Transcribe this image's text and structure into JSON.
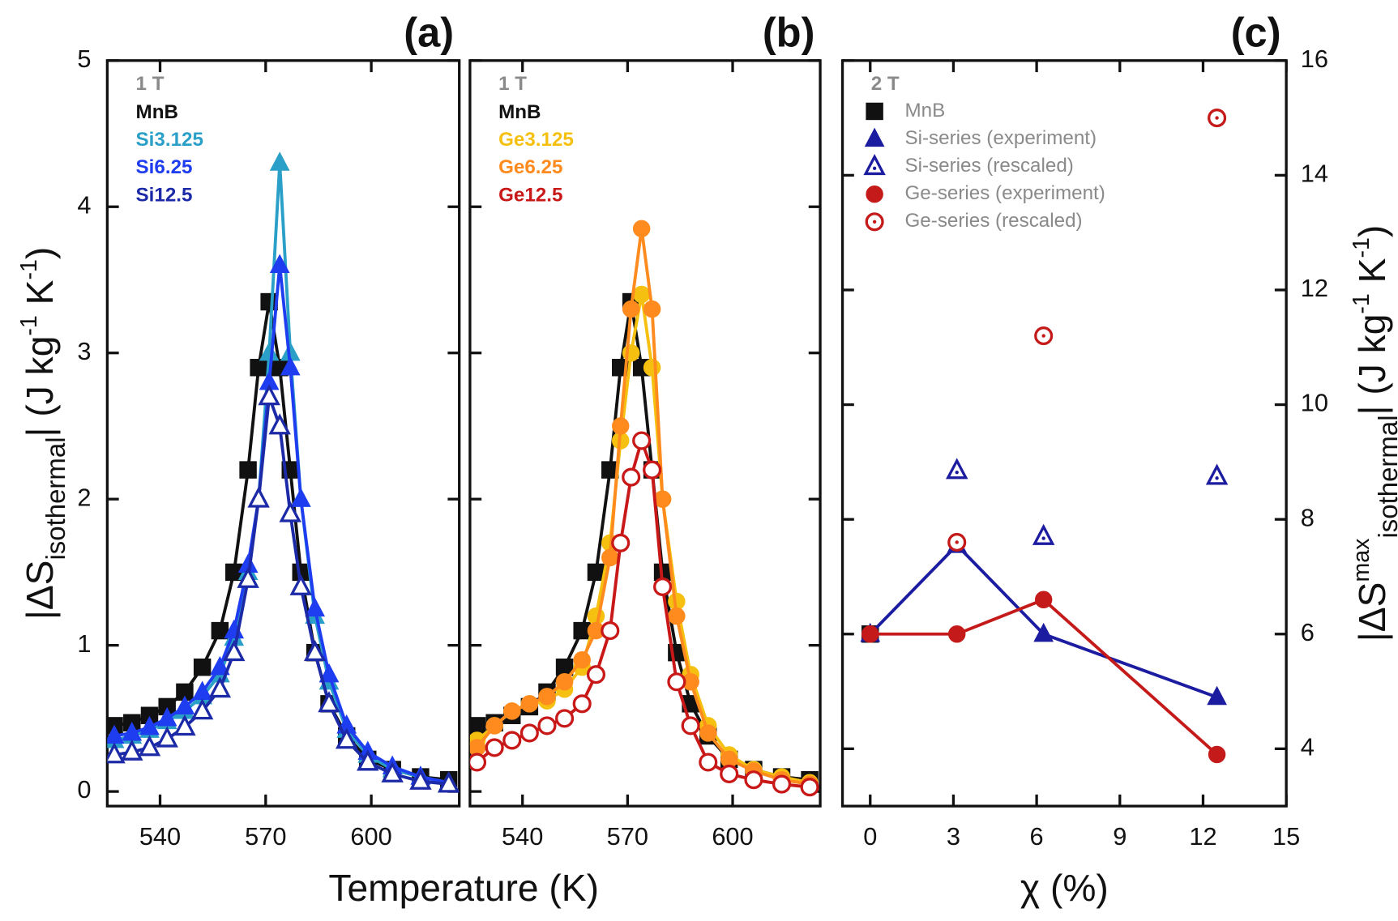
{
  "chart_data": [
    {
      "type": "line",
      "panel_label": "(a)",
      "field": "1 T",
      "xlabel": "Temperature (K)",
      "ylabel": [
        {
          "text": "|ΔS"
        },
        {
          "text": "isothermal",
          "shift": "sub"
        },
        {
          "text": "| (J kg"
        },
        {
          "text": "-1",
          "shift": "super"
        },
        {
          "text": " K"
        },
        {
          "text": "-1",
          "shift": "super"
        },
        {
          "text": ")"
        }
      ],
      "xlim": [
        525,
        625
      ],
      "ylim": [
        -0.1,
        5
      ],
      "xticks": [
        540,
        570,
        600
      ],
      "yticks": [
        0,
        1,
        2,
        3,
        4,
        5
      ],
      "x": [
        527,
        532,
        537,
        542,
        547,
        552,
        557,
        561,
        565,
        568,
        571,
        574,
        577,
        580,
        584,
        588,
        593,
        599,
        606,
        614,
        622
      ],
      "series": [
        {
          "name": "MnB",
          "color": "#111111",
          "marker": "square",
          "values": [
            0.45,
            0.47,
            0.52,
            0.58,
            0.68,
            0.85,
            1.1,
            1.5,
            2.2,
            2.9,
            3.35,
            2.9,
            2.2,
            1.5,
            0.95,
            0.6,
            0.38,
            0.22,
            0.15,
            0.1,
            0.08
          ]
        },
        {
          "name": "Si3.125",
          "color": "#2aa0c8",
          "marker": "triangle",
          "values": [
            0.35,
            0.38,
            0.42,
            0.48,
            0.55,
            0.65,
            0.8,
            1.05,
            1.5,
            2.0,
            3.0,
            4.3,
            3.0,
            2.0,
            1.2,
            0.75,
            0.42,
            0.25,
            0.15,
            0.1,
            0.06
          ]
        },
        {
          "name": "Si6.25",
          "color": "#1f3df0",
          "marker": "triangle",
          "values": [
            0.38,
            0.4,
            0.44,
            0.5,
            0.58,
            0.68,
            0.85,
            1.1,
            1.55,
            2.0,
            2.8,
            3.6,
            2.9,
            2.0,
            1.25,
            0.8,
            0.45,
            0.27,
            0.17,
            0.1,
            0.06
          ]
        },
        {
          "name": "Si12.5",
          "color": "#1c2aa8",
          "marker": "triangle-open",
          "values": [
            0.25,
            0.27,
            0.3,
            0.36,
            0.44,
            0.55,
            0.7,
            0.95,
            1.45,
            2.0,
            2.7,
            2.5,
            1.9,
            1.4,
            0.95,
            0.6,
            0.35,
            0.2,
            0.12,
            0.07,
            0.05
          ]
        }
      ]
    },
    {
      "type": "line",
      "panel_label": "(b)",
      "field": "1 T",
      "xlim": [
        525,
        625
      ],
      "ylim": [
        -0.1,
        5
      ],
      "xticks": [
        540,
        570,
        600
      ],
      "x": [
        527,
        532,
        537,
        542,
        547,
        552,
        557,
        561,
        565,
        568,
        571,
        574,
        577,
        580,
        584,
        588,
        593,
        599,
        606,
        614,
        622
      ],
      "series": [
        {
          "name": "MnB",
          "color": "#111111",
          "marker": "square",
          "values": [
            0.45,
            0.47,
            0.52,
            0.58,
            0.68,
            0.85,
            1.1,
            1.5,
            2.2,
            2.9,
            3.35,
            2.9,
            2.2,
            1.5,
            0.95,
            0.6,
            0.38,
            0.22,
            0.15,
            0.1,
            0.08
          ]
        },
        {
          "name": "Ge3.125",
          "color": "#f5c010",
          "marker": "circle",
          "values": [
            0.35,
            0.45,
            0.55,
            0.6,
            0.62,
            0.7,
            0.85,
            1.2,
            1.7,
            2.4,
            3.0,
            3.4,
            2.9,
            2.0,
            1.3,
            0.8,
            0.45,
            0.25,
            0.15,
            0.1,
            0.06
          ]
        },
        {
          "name": "Ge6.25",
          "color": "#ff8a1e",
          "marker": "circle",
          "values": [
            0.3,
            0.45,
            0.55,
            0.6,
            0.65,
            0.75,
            0.9,
            1.1,
            1.6,
            2.5,
            3.3,
            3.85,
            3.3,
            2.0,
            1.2,
            0.75,
            0.4,
            0.22,
            0.14,
            0.08,
            0.05
          ]
        },
        {
          "name": "Ge12.5",
          "color": "#c81818",
          "marker": "circle-open",
          "values": [
            0.2,
            0.3,
            0.35,
            0.4,
            0.45,
            0.5,
            0.6,
            0.8,
            1.1,
            1.7,
            2.15,
            2.4,
            2.2,
            1.4,
            0.75,
            0.45,
            0.2,
            0.12,
            0.08,
            0.05,
            0.03
          ]
        }
      ]
    },
    {
      "type": "scatter",
      "panel_label": "(c)",
      "field": "2 T",
      "xlabel": "χ (%)",
      "yaxis_side": "right",
      "ylabel": [
        {
          "text": "|ΔS"
        },
        {
          "text": "max",
          "shift": "super"
        },
        {
          "text": "isothermal",
          "shift": "sub"
        },
        {
          "text": "| (J kg"
        },
        {
          "text": "-1",
          "shift": "super"
        },
        {
          "text": " K"
        },
        {
          "text": "-1",
          "shift": "super"
        },
        {
          "text": ")"
        }
      ],
      "xlim": [
        -1,
        15
      ],
      "ylim": [
        3,
        16
      ],
      "xticks": [
        0,
        3,
        6,
        9,
        12,
        15
      ],
      "yticks": [
        4,
        6,
        8,
        10,
        12,
        14,
        16
      ],
      "series": [
        {
          "name": "MnB",
          "color": "#111111",
          "marker": "square",
          "connected": false,
          "x": [
            0
          ],
          "values": [
            6.0
          ]
        },
        {
          "name": "Si-series (experiment)",
          "color": "#1c1ca0",
          "marker": "triangle",
          "connected": true,
          "x": [
            0,
            3.125,
            6.25,
            12.5
          ],
          "values": [
            6.0,
            7.55,
            6.0,
            4.9
          ]
        },
        {
          "name": "Si-series (rescaled)",
          "color": "#1c1ca0",
          "marker": "triangle-dot",
          "connected": false,
          "x": [
            3.125,
            6.25,
            12.5
          ],
          "values": [
            8.85,
            7.7,
            8.75
          ]
        },
        {
          "name": "Ge-series (experiment)",
          "color": "#c41a1a",
          "marker": "circle",
          "connected": true,
          "x": [
            0,
            3.125,
            6.25,
            12.5
          ],
          "values": [
            6.0,
            6.0,
            6.6,
            3.9
          ]
        },
        {
          "name": "Ge-series (rescaled)",
          "color": "#c41a1a",
          "marker": "circle-dot",
          "connected": false,
          "x": [
            3.125,
            6.25,
            12.5
          ],
          "values": [
            7.6,
            11.2,
            15.0
          ]
        }
      ]
    }
  ]
}
